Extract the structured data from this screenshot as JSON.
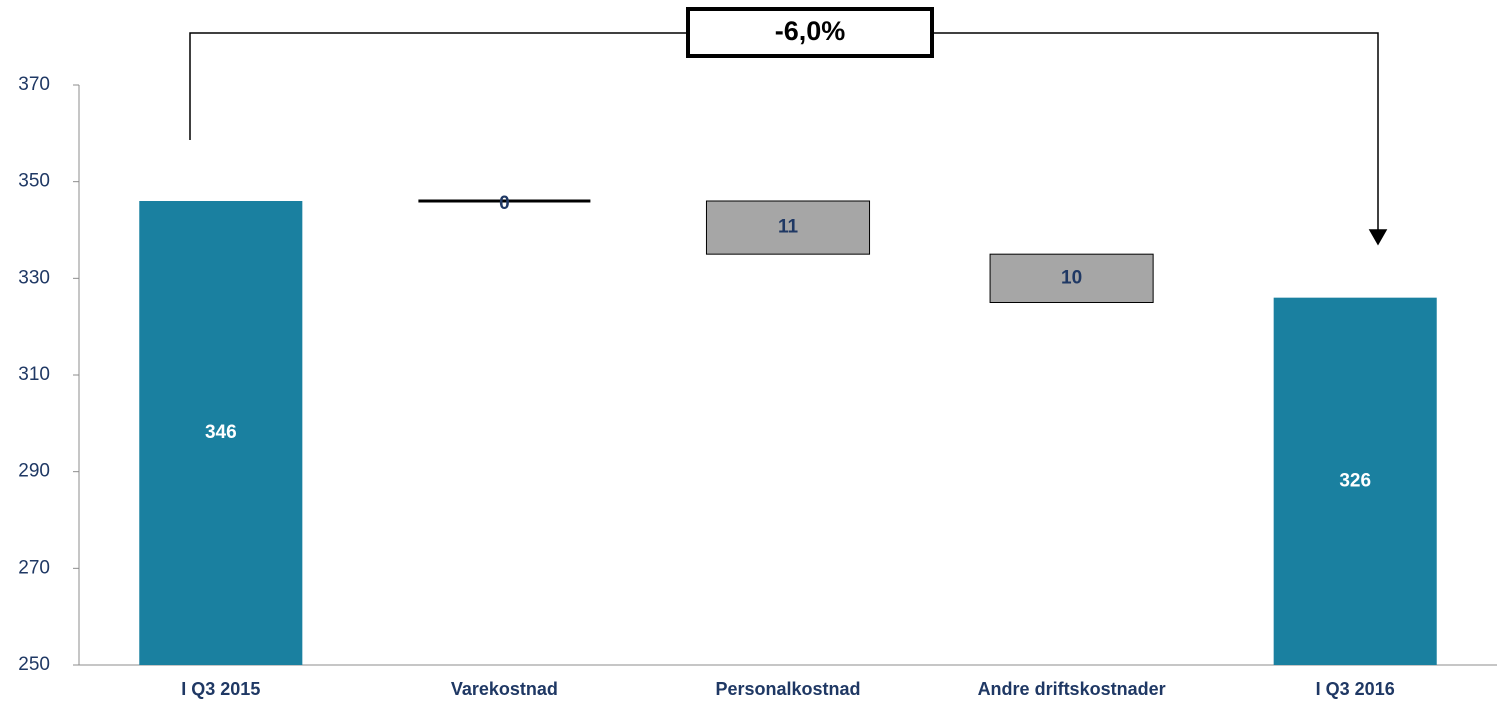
{
  "chart_data": {
    "type": "waterfall",
    "categories": [
      "I Q3 2015",
      "Varekostnad",
      "Personalkostnad",
      "Andre driftskostnader",
      "I Q3 2016"
    ],
    "values": [
      346,
      0,
      -11,
      -10,
      326
    ],
    "value_labels": [
      "346",
      "0",
      "11",
      "10",
      "326"
    ],
    "measure": [
      "absolute",
      "relative",
      "relative",
      "relative",
      "total"
    ],
    "total_color": "#1a80a0",
    "decrease_color": "#a6a6a6",
    "ylim": [
      250,
      370
    ],
    "yticks": [
      250,
      270,
      290,
      310,
      330,
      350,
      370
    ],
    "grid": false,
    "annotation": "-6,0%"
  }
}
